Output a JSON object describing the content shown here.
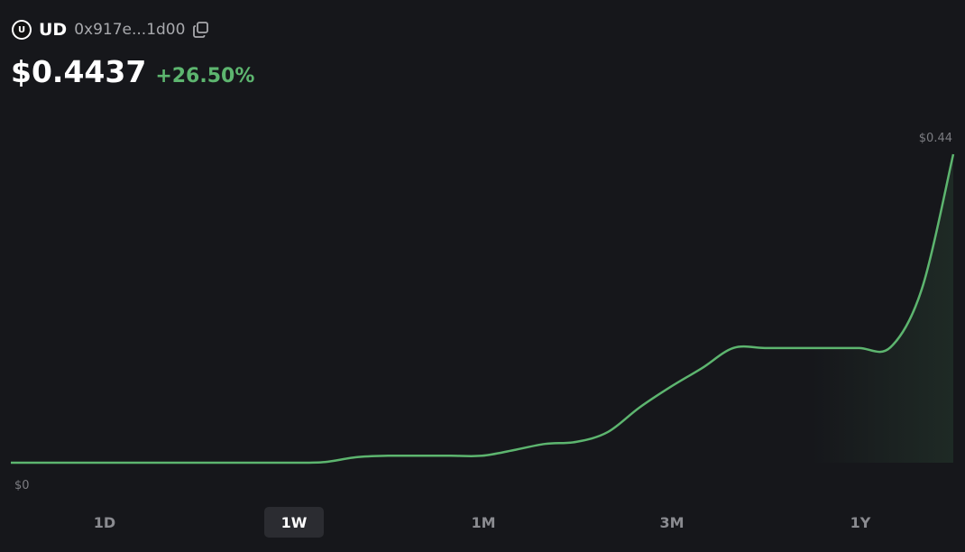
{
  "header": {
    "icon_letter": "U",
    "symbol": "UD",
    "address": "0x917e...1d00",
    "price": "$0.4437",
    "change": "+26.50%"
  },
  "chart_data": {
    "type": "line",
    "color": "#5db56f",
    "values": [
      0,
      0,
      0,
      0,
      0,
      0,
      0,
      0,
      0,
      0,
      0.001,
      0.008,
      0.01,
      0.01,
      0.01,
      0.01,
      0.018,
      0.027,
      0.03,
      0.044,
      0.079,
      0.109,
      0.136,
      0.165,
      0.165,
      0.165,
      0.165,
      0.165,
      0.166,
      0.25,
      0.4437
    ],
    "ylim": [
      0,
      0.4437
    ],
    "yticks": [
      {
        "value": 0,
        "label": "$0"
      },
      {
        "value": 0.44,
        "label": "$0.44"
      }
    ]
  },
  "ranges": {
    "options": [
      "1D",
      "1W",
      "1M",
      "3M",
      "1Y"
    ],
    "selected": "1W"
  }
}
